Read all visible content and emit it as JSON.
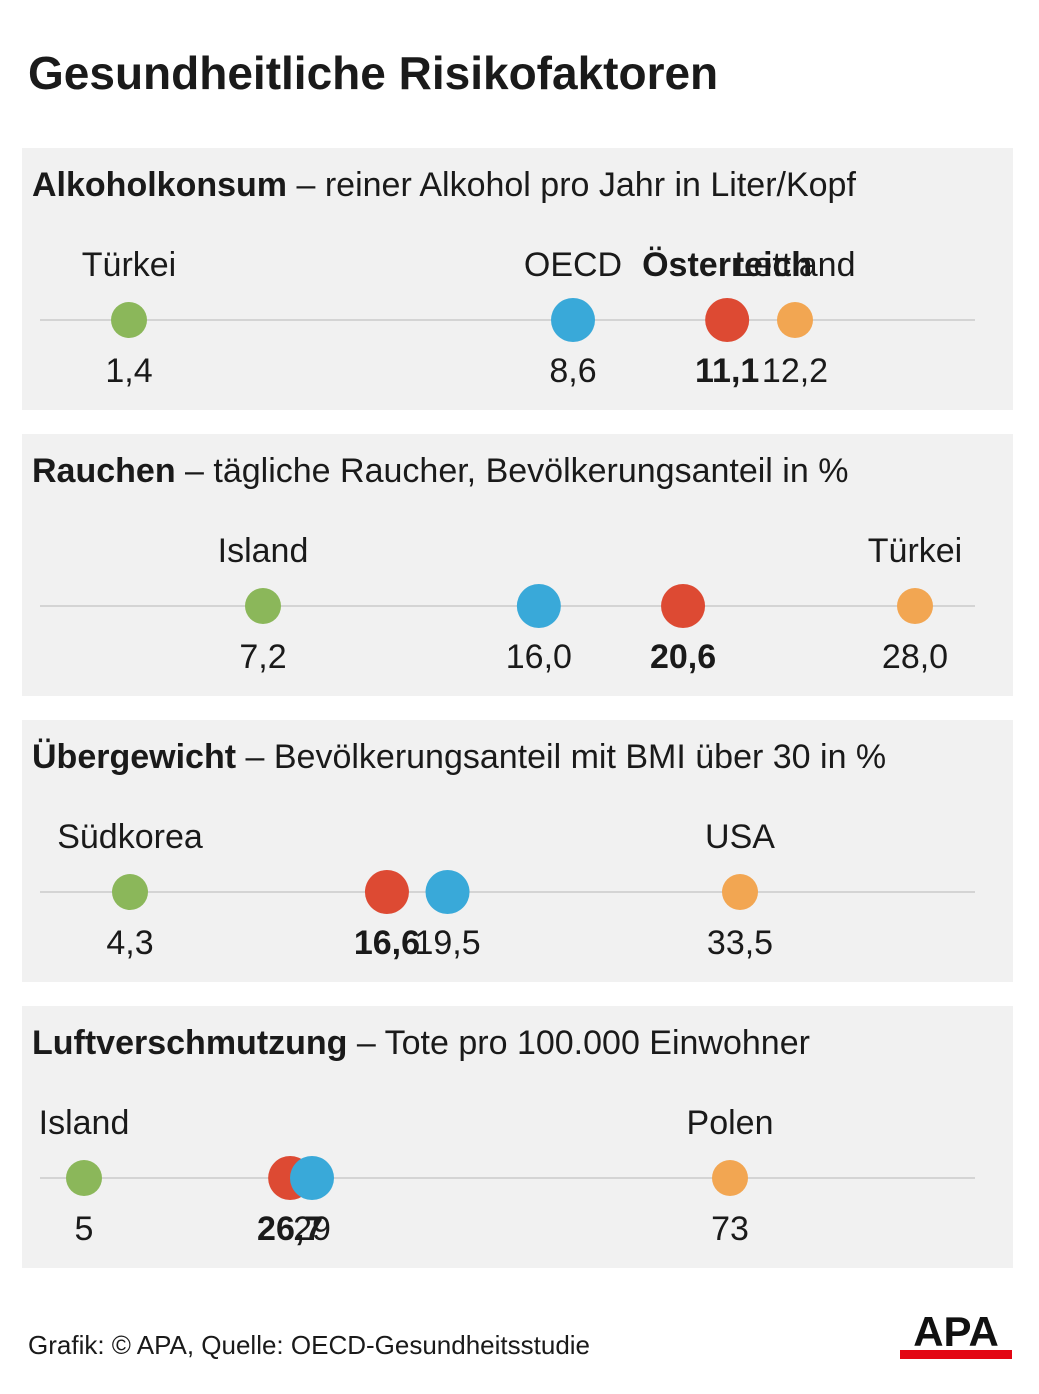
{
  "title": "Gesundheitliche Risikofaktoren",
  "footer": "Grafik: © APA, Quelle: OECD-Gesundheitsstudie",
  "logo_text": "APA",
  "colors": {
    "min": "#8bb75a",
    "oecd": "#39a9d9",
    "oesterreich": "#dd4a33",
    "max": "#f2a652",
    "axis": "#d4d4d4",
    "panel": "#f1f1f1"
  },
  "chart_data": [
    {
      "type": "scatter",
      "title": "Alkoholkonsum",
      "subtitle": "– reiner Alkohol pro Jahr in Liter/Kopf",
      "points": [
        {
          "key": "min",
          "label": "Türkei",
          "value": 1.4,
          "value_label": "1,4"
        },
        {
          "key": "oecd",
          "label": "OECD",
          "value": 8.6,
          "value_label": "8,6"
        },
        {
          "key": "oesterreich",
          "label": "Österreich",
          "value": 11.1,
          "value_label": "11,1"
        },
        {
          "key": "max",
          "label": "Lettland",
          "value": 12.2,
          "value_label": "12,2"
        }
      ]
    },
    {
      "type": "scatter",
      "title": "Rauchen",
      "subtitle": "– tägliche Raucher, Bevölkerungsanteil in %",
      "points": [
        {
          "key": "min",
          "label": "Island",
          "value": 7.2,
          "value_label": "7,2"
        },
        {
          "key": "oecd",
          "label": "",
          "value": 16.0,
          "value_label": "16,0"
        },
        {
          "key": "oesterreich",
          "label": "",
          "value": 20.6,
          "value_label": "20,6"
        },
        {
          "key": "max",
          "label": "Türkei",
          "value": 28.0,
          "value_label": "28,0"
        }
      ]
    },
    {
      "type": "scatter",
      "title": "Übergewicht",
      "subtitle": "– Bevölkerungsanteil mit BMI über 30 in %",
      "points": [
        {
          "key": "min",
          "label": "Südkorea",
          "value": 4.3,
          "value_label": "4,3"
        },
        {
          "key": "oesterreich",
          "label": "",
          "value": 16.6,
          "value_label": "16,6"
        },
        {
          "key": "oecd",
          "label": "",
          "value": 19.5,
          "value_label": "19,5"
        },
        {
          "key": "max",
          "label": "USA",
          "value": 33.5,
          "value_label": "33,5"
        }
      ]
    },
    {
      "type": "scatter",
      "title": "Luftverschmutzung",
      "subtitle": "– Tote pro 100.000 Einwohner",
      "points": [
        {
          "key": "min",
          "label": "Island",
          "value": 5,
          "value_label": "5"
        },
        {
          "key": "oesterreich",
          "label": "",
          "value": 26.7,
          "value_label": "26,7"
        },
        {
          "key": "oecd",
          "label": "",
          "value": 29,
          "value_label": "29"
        },
        {
          "key": "max",
          "label": "Polen",
          "value": 73,
          "value_label": "73"
        }
      ]
    }
  ]
}
